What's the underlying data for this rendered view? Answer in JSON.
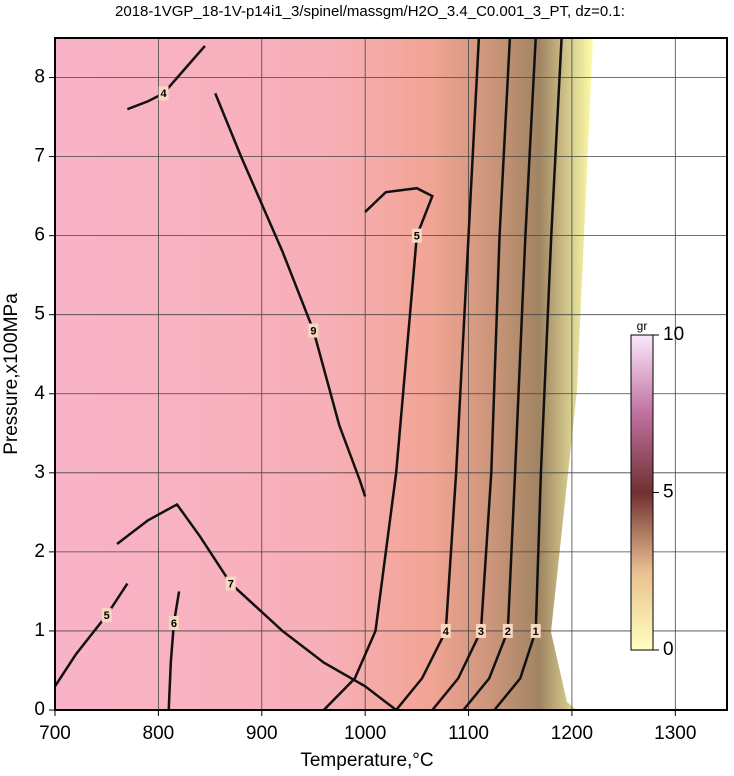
{
  "chart_data": {
    "type": "contour",
    "title": "2018-1VGP_18-1V-p14i1_3/spinel/massgm/H2O_3.4_C0.001_3_PT, dz=0.1:",
    "xlabel": "Temperature,°C",
    "ylabel": "Pressure,x100MPa",
    "xlim": [
      700,
      1350
    ],
    "ylim": [
      0,
      8.5
    ],
    "xticks": [
      700,
      800,
      900,
      1000,
      1100,
      1200,
      1300
    ],
    "yticks": [
      0,
      1,
      2,
      3,
      4,
      5,
      6,
      7,
      8
    ],
    "grid": true,
    "colorbar": {
      "label": "gr",
      "lim": [
        0,
        10
      ],
      "ticks": [
        0,
        5,
        10
      ]
    },
    "contours": [
      {
        "level": 1,
        "x": [
          1190,
          1180,
          1170,
          1165,
          1150,
          1125
        ],
        "y": [
          8.5,
          6,
          3,
          1,
          0.4,
          0
        ]
      },
      {
        "level": 2,
        "x": [
          1165,
          1155,
          1145,
          1138,
          1120,
          1095
        ],
        "y": [
          8.5,
          6,
          3,
          1,
          0.4,
          0
        ]
      },
      {
        "level": 3,
        "x": [
          1140,
          1130,
          1122,
          1112,
          1090,
          1065
        ],
        "y": [
          8.5,
          6,
          3,
          1,
          0.4,
          0
        ]
      },
      {
        "level": 4,
        "x": [
          1110,
          1100,
          1088,
          1078,
          1055,
          1030
        ],
        "y": [
          8.5,
          6,
          3,
          1,
          0.4,
          0
        ]
      },
      {
        "level": 5,
        "x": [
          1000,
          1020,
          1050,
          1065,
          1050,
          1030,
          1010,
          990,
          960
        ],
        "y": [
          6.3,
          6.55,
          6.6,
          6.5,
          6,
          3,
          1,
          0.4,
          0
        ]
      },
      {
        "level": 9,
        "x": [
          855,
          880,
          920,
          950,
          975,
          995,
          1000
        ],
        "y": [
          7.8,
          7.0,
          5.8,
          4.8,
          3.6,
          2.9,
          2.7
        ]
      },
      {
        "level": 7,
        "x": [
          760,
          790,
          818,
          840,
          870,
          920,
          960,
          1000,
          1030
        ],
        "y": [
          2.1,
          2.4,
          2.6,
          2.2,
          1.6,
          1.0,
          0.6,
          0.3,
          0
        ]
      },
      {
        "level": 6,
        "x": [
          810,
          812,
          815,
          820
        ],
        "y": [
          0,
          0.6,
          1.1,
          1.5
        ]
      },
      {
        "level": 5,
        "x": [
          700,
          720,
          750,
          770
        ],
        "y": [
          0.3,
          0.7,
          1.2,
          1.6
        ]
      },
      {
        "level": 4,
        "x": [
          770,
          790,
          805,
          825,
          845
        ],
        "y": [
          7.6,
          7.7,
          7.8,
          8.1,
          8.4
        ]
      }
    ]
  }
}
